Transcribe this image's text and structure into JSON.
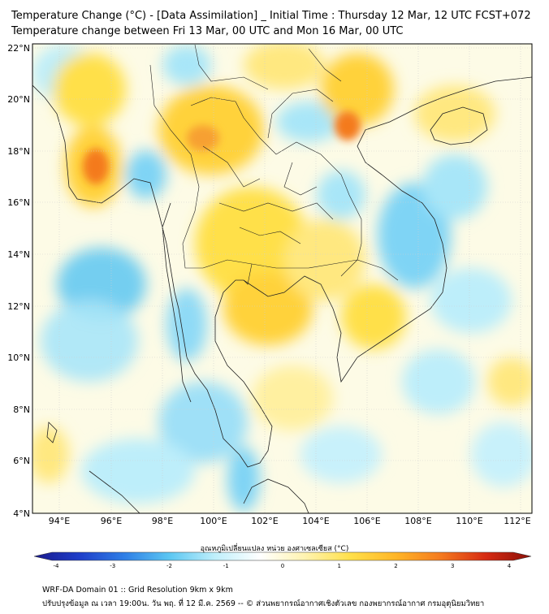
{
  "title": {
    "line1": "Temperature Change (°C) - [Data Assimilation] _ Initial Time : Thursday 12 Mar, 12 UTC FCST+072",
    "line2": "Temperature change between Fri 13 Mar, 00 UTC and Mon 16 Mar, 00 UTC"
  },
  "map": {
    "lat_labels": [
      "22°N",
      "20°N",
      "18°N",
      "16°N",
      "14°N",
      "12°N",
      "10°N",
      "8°N",
      "6°N",
      "4°N"
    ],
    "lon_labels": [
      "94°E",
      "96°E",
      "98°E",
      "100°E",
      "102°E",
      "104°E",
      "106°E",
      "108°E",
      "110°E",
      "112°E"
    ],
    "lat_range": [
      4,
      22.3
    ],
    "lon_range": [
      93.1,
      112.6
    ],
    "features": {
      "warm_anomaly_west_myanmar": {
        "lat": 17.6,
        "lon": 95.6,
        "value": 3
      },
      "warm_anomaly_north_thailand": {
        "lat": 18.6,
        "lon": 99.8,
        "value": 2.5
      },
      "warm_anomaly_north_vietnam": {
        "lat": 19.0,
        "lon": 105.3,
        "value": 3
      },
      "cool_anomaly_andaman_sea": {
        "lat": 12.8,
        "lon": 95.8,
        "value": -1.8
      },
      "cool_anomaly_central_vietnam": {
        "lat": 15.0,
        "lon": 108.0,
        "value": -1.5
      }
    }
  },
  "colorbar": {
    "label": "อุณหภูมิเปลี่ยนแปลง หน่วย องศาเซลเซียส (°C)",
    "ticks": [
      "-4",
      "-3",
      "-2",
      "-1",
      "0",
      "1",
      "2",
      "3",
      "4"
    ],
    "range": [
      -4,
      4
    ],
    "colors": [
      "#1a1a8c",
      "#1f3ec9",
      "#2f7fe6",
      "#5cc7f2",
      "#bfeffb",
      "#ffffff",
      "#fff3b0",
      "#ffe04a",
      "#ffb627",
      "#f47a1f",
      "#d62a12",
      "#8a1008"
    ]
  },
  "footer": {
    "line1": "WRF-DA Domain 01 :: Grid Resolution 9km x 9km",
    "line2": "ปรับปรุงข้อมูล ณ เวลา 19:00น. วัน พฤ. ที่ 12 มี.ค. 2569 -- © ส่วนพยากรณ์อากาศเชิงตัวเลข กองพยากรณ์อากาศ กรมอุตุนิยมวิทยา"
  }
}
